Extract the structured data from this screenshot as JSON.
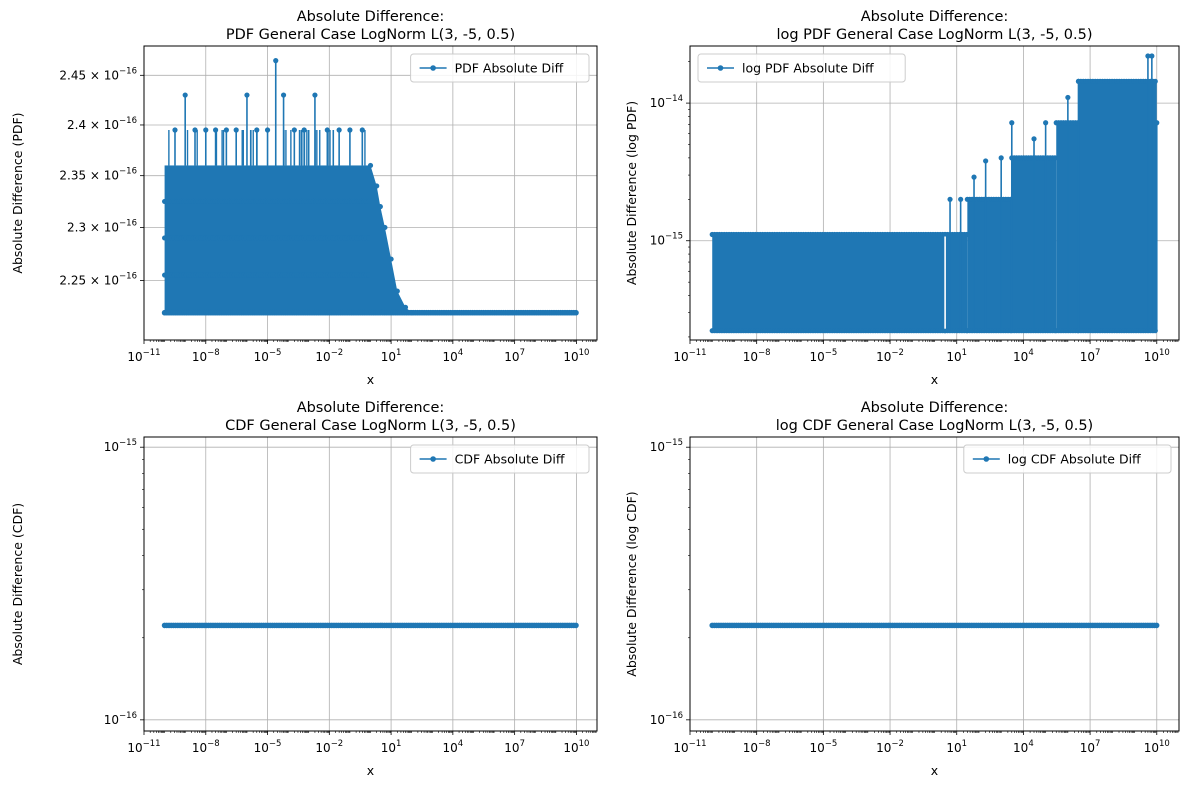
{
  "figure": {
    "x_tick_labels": [
      "10",
      "10",
      "10",
      "10",
      "10",
      "10",
      "10",
      "10"
    ],
    "x_tick_exponents": [
      "−11",
      "−8",
      "−5",
      "−2",
      "1",
      "4",
      "7",
      "10"
    ]
  },
  "chart_data": [
    {
      "type": "line",
      "title_line1": "Absolute Difference:",
      "title_line2": "PDF General Case LogNorm L(3, -5, 0.5)",
      "xlabel": "x",
      "ylabel": "Absolute Difference (PDF)",
      "x_scale": "log",
      "y_scale": "log",
      "xlim": [
        1e-11,
        100000000000.0
      ],
      "ylim": [
        2.195e-16,
        2.48e-16
      ],
      "x_ticks": [
        1e-11,
        1e-08,
        1e-05,
        0.01,
        10.0,
        10000.0,
        10000000.0,
        10000000000.0
      ],
      "y_ticks": [
        {
          "value": 2.25e-16,
          "mantissa": "2.25 × 10",
          "exp": "−16"
        },
        {
          "value": 2.3e-16,
          "mantissa": "2.3 × 10",
          "exp": "−16"
        },
        {
          "value": 2.35e-16,
          "mantissa": "2.35 × 10",
          "exp": "−16"
        },
        {
          "value": 2.4e-16,
          "mantissa": "2.4 × 10",
          "exp": "−16"
        },
        {
          "value": 2.45e-16,
          "mantissa": "2.45 × 10",
          "exp": "−16"
        }
      ],
      "grid": true,
      "legend_placement": "upper right",
      "series": [
        {
          "name": "PDF Absolute Diff",
          "color": "#1f77b4",
          "marker": "circle",
          "x_range": [
            1e-10,
            10000000000.0
          ],
          "base_value": 2.22e-16,
          "dense_band": {
            "x_from": 1e-10,
            "x_to": 1,
            "value_low": 2.22e-16,
            "value_high": 2.36e-16
          },
          "tail": [
            {
              "x": 1,
              "y": 2.36e-16
            },
            {
              "x": 2,
              "y": 2.34e-16
            },
            {
              "x": 3,
              "y": 2.32e-16
            },
            {
              "x": 5,
              "y": 2.3e-16
            },
            {
              "x": 10,
              "y": 2.27e-16
            },
            {
              "x": 20,
              "y": 2.24e-16
            },
            {
              "x": 50,
              "y": 2.225e-16
            },
            {
              "x": 100,
              "y": 2.22e-16
            }
          ],
          "spikes": [
            {
              "x": 3.2e-10,
              "y": 2.395e-16
            },
            {
              "x": 1e-09,
              "y": 2.43e-16
            },
            {
              "x": 3e-09,
              "y": 2.395e-16
            },
            {
              "x": 1e-08,
              "y": 2.395e-16
            },
            {
              "x": 3e-08,
              "y": 2.395e-16
            },
            {
              "x": 1e-07,
              "y": 2.395e-16
            },
            {
              "x": 3e-07,
              "y": 2.395e-16
            },
            {
              "x": 1e-06,
              "y": 2.43e-16
            },
            {
              "x": 3e-06,
              "y": 2.395e-16
            },
            {
              "x": 1e-05,
              "y": 2.395e-16
            },
            {
              "x": 2.5e-05,
              "y": 2.465e-16
            },
            {
              "x": 6e-05,
              "y": 2.43e-16
            },
            {
              "x": 0.0002,
              "y": 2.395e-16
            },
            {
              "x": 0.0006,
              "y": 2.395e-16
            },
            {
              "x": 0.002,
              "y": 2.43e-16
            },
            {
              "x": 0.008,
              "y": 2.395e-16
            },
            {
              "x": 0.03,
              "y": 2.395e-16
            },
            {
              "x": 0.1,
              "y": 2.395e-16
            },
            {
              "x": 0.4,
              "y": 2.395e-16
            }
          ]
        }
      ]
    },
    {
      "type": "line",
      "title_line1": "Absolute Difference:",
      "title_line2": "log PDF General Case LogNorm L(3, -5, 0.5)",
      "xlabel": "x",
      "ylabel": "Absolute Difference (log PDF)",
      "x_scale": "log",
      "y_scale": "log",
      "xlim": [
        1e-11,
        100000000000.0
      ],
      "ylim": [
        1.9e-16,
        2.6e-14
      ],
      "x_ticks": [
        1e-11,
        1e-08,
        1e-05,
        0.01,
        10.0,
        10000.0,
        10000000.0,
        10000000000.0
      ],
      "y_ticks": [
        {
          "value": 1e-15,
          "mantissa": "10",
          "exp": "−15"
        },
        {
          "value": 1e-14,
          "mantissa": "10",
          "exp": "−14"
        }
      ],
      "grid": true,
      "legend_placement": "upper left",
      "series": [
        {
          "name": "log PDF Absolute Diff",
          "color": "#1f77b4",
          "marker": "circle",
          "x_range": [
            1e-10,
            10000000000.0
          ],
          "base_value": 2.22e-16,
          "bands": [
            {
              "x_from": 1e-10,
              "x_to": 3,
              "value_low": 2.22e-16,
              "value_high": 1.11e-15
            },
            {
              "x_from": 3,
              "x_to": 30,
              "value_low": 2.22e-16,
              "value_high": 1.11e-15
            },
            {
              "x_from": 30,
              "x_to": 3000.0,
              "value_low": 2.22e-16,
              "value_high": 2e-15
            },
            {
              "x_from": 3000.0,
              "x_to": 300000.0,
              "value_low": 2.22e-16,
              "value_high": 4e-15
            },
            {
              "x_from": 300000.0,
              "x_to": 3000000.0,
              "value_low": 2.22e-16,
              "value_high": 7.2e-15
            },
            {
              "x_from": 3000000.0,
              "x_to": 10000000000.0,
              "value_low": 2.22e-16,
              "value_high": 1.44e-14
            }
          ],
          "spikes": [
            {
              "x": 5,
              "y": 2e-15
            },
            {
              "x": 15,
              "y": 2e-15
            },
            {
              "x": 60,
              "y": 2.9e-15
            },
            {
              "x": 200,
              "y": 3.8e-15
            },
            {
              "x": 1000.0,
              "y": 4e-15
            },
            {
              "x": 3000.0,
              "y": 7.2e-15
            },
            {
              "x": 30000.0,
              "y": 5.5e-15
            },
            {
              "x": 100000.0,
              "y": 7.2e-15
            },
            {
              "x": 1000000.0,
              "y": 1.1e-14
            },
            {
              "x": 3000000.0,
              "y": 1.44e-14
            },
            {
              "x": 4000000000.0,
              "y": 2.2e-14
            },
            {
              "x": 6000000000.0,
              "y": 2.2e-14
            },
            {
              "x": 10000000000.0,
              "y": 7.2e-15
            }
          ]
        }
      ]
    },
    {
      "type": "line",
      "title_line1": "Absolute Difference:",
      "title_line2": "CDF General Case LogNorm L(3, -5, 0.5)",
      "xlabel": "x",
      "ylabel": "Absolute Difference (CDF)",
      "x_scale": "log",
      "y_scale": "log",
      "xlim": [
        1e-11,
        100000000000.0
      ],
      "ylim": [
        9.1e-17,
        1.09e-15
      ],
      "x_ticks": [
        1e-11,
        1e-08,
        1e-05,
        0.01,
        10.0,
        10000.0,
        10000000.0,
        10000000000.0
      ],
      "y_ticks": [
        {
          "value": 1e-16,
          "mantissa": "10",
          "exp": "−16"
        },
        {
          "value": 1e-15,
          "mantissa": "10",
          "exp": "−15"
        }
      ],
      "grid": true,
      "legend_placement": "upper right",
      "series": [
        {
          "name": "CDF Absolute Diff",
          "color": "#1f77b4",
          "marker": "circle",
          "x_range": [
            1e-10,
            10000000000.0
          ],
          "constant_value": 2.22e-16
        }
      ]
    },
    {
      "type": "line",
      "title_line1": "Absolute Difference:",
      "title_line2": "log CDF General Case LogNorm L(3, -5, 0.5)",
      "xlabel": "x",
      "ylabel": "Absolute Difference (log CDF)",
      "x_scale": "log",
      "y_scale": "log",
      "xlim": [
        1e-11,
        100000000000.0
      ],
      "ylim": [
        9.1e-17,
        1.09e-15
      ],
      "x_ticks": [
        1e-11,
        1e-08,
        1e-05,
        0.01,
        10.0,
        10000.0,
        10000000.0,
        10000000000.0
      ],
      "y_ticks": [
        {
          "value": 1e-16,
          "mantissa": "10",
          "exp": "−16"
        },
        {
          "value": 1e-15,
          "mantissa": "10",
          "exp": "−15"
        }
      ],
      "grid": true,
      "legend_placement": "upper right",
      "series": [
        {
          "name": "log CDF Absolute Diff",
          "color": "#1f77b4",
          "marker": "circle",
          "x_range": [
            1e-10,
            10000000000.0
          ],
          "constant_value": 2.22e-16
        }
      ]
    }
  ]
}
